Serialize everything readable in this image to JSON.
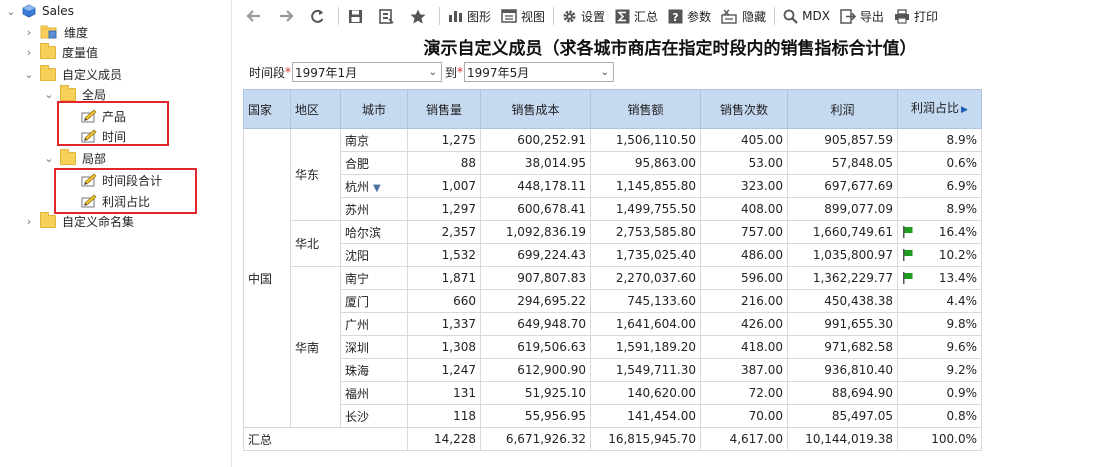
{
  "tree": {
    "root": "Sales",
    "items": [
      {
        "label": "维度"
      },
      {
        "label": "度量值"
      },
      {
        "label": "自定义成员"
      },
      {
        "label": "全局"
      },
      {
        "label": "产品"
      },
      {
        "label": "时间"
      },
      {
        "label": "局部"
      },
      {
        "label": "时间段合计"
      },
      {
        "label": "利润占比"
      },
      {
        "label": "自定义命名集"
      }
    ]
  },
  "toolbar": {
    "chart": "图形",
    "view": "视图",
    "settings": "设置",
    "summary": "汇总",
    "params": "参数",
    "hide": "隐藏",
    "mdx": "MDX",
    "export": "导出",
    "print": "打印"
  },
  "report": {
    "title": "演示自定义成员（求各城市商店在指定时段内的销售指标合计值）",
    "filter_label": "时间段",
    "required_mark": "*",
    "from_value": "1997年1月",
    "to_label": "到",
    "to_value": "1997年5月"
  },
  "table": {
    "headers": [
      "国家",
      "地区",
      "城市",
      "销售量",
      "销售成本",
      "销售额",
      "销售次数",
      "利润",
      "利润占比"
    ],
    "country": "中国",
    "regions": [
      "华东",
      "华北",
      "华南"
    ],
    "rows": [
      {
        "city": "南京",
        "qty": "1,275",
        "cost": "600,252.91",
        "sales": "1,506,110.50",
        "count": "405.00",
        "profit": "905,857.59",
        "ratio": "8.9%"
      },
      {
        "city": "合肥",
        "qty": "88",
        "cost": "38,014.95",
        "sales": "95,863.00",
        "count": "53.00",
        "profit": "57,848.05",
        "ratio": "0.6%"
      },
      {
        "city": "杭州",
        "qty": "1,007",
        "cost": "448,178.11",
        "sales": "1,145,855.80",
        "count": "323.00",
        "profit": "697,677.69",
        "ratio": "6.9%"
      },
      {
        "city": "苏州",
        "qty": "1,297",
        "cost": "600,678.41",
        "sales": "1,499,755.50",
        "count": "408.00",
        "profit": "899,077.09",
        "ratio": "8.9%"
      },
      {
        "city": "哈尔滨",
        "qty": "2,357",
        "cost": "1,092,836.19",
        "sales": "2,753,585.80",
        "count": "757.00",
        "profit": "1,660,749.61",
        "ratio": "16.4%"
      },
      {
        "city": "沈阳",
        "qty": "1,532",
        "cost": "699,224.43",
        "sales": "1,735,025.40",
        "count": "486.00",
        "profit": "1,035,800.97",
        "ratio": "10.2%"
      },
      {
        "city": "南宁",
        "qty": "1,871",
        "cost": "907,807.83",
        "sales": "2,270,037.60",
        "count": "596.00",
        "profit": "1,362,229.77",
        "ratio": "13.4%"
      },
      {
        "city": "厦门",
        "qty": "660",
        "cost": "294,695.22",
        "sales": "745,133.60",
        "count": "216.00",
        "profit": "450,438.38",
        "ratio": "4.4%"
      },
      {
        "city": "广州",
        "qty": "1,337",
        "cost": "649,948.70",
        "sales": "1,641,604.00",
        "count": "426.00",
        "profit": "991,655.30",
        "ratio": "9.8%"
      },
      {
        "city": "深圳",
        "qty": "1,308",
        "cost": "619,506.63",
        "sales": "1,591,189.20",
        "count": "418.00",
        "profit": "971,682.58",
        "ratio": "9.6%"
      },
      {
        "city": "珠海",
        "qty": "1,247",
        "cost": "612,900.90",
        "sales": "1,549,711.30",
        "count": "387.00",
        "profit": "936,810.40",
        "ratio": "9.2%"
      },
      {
        "city": "福州",
        "qty": "131",
        "cost": "51,925.10",
        "sales": "140,620.00",
        "count": "72.00",
        "profit": "88,694.90",
        "ratio": "0.9%"
      },
      {
        "city": "长沙",
        "qty": "118",
        "cost": "55,956.95",
        "sales": "141,454.00",
        "count": "70.00",
        "profit": "85,497.05",
        "ratio": "0.8%"
      }
    ],
    "total": {
      "label": "汇总",
      "qty": "14,228",
      "cost": "6,671,926.32",
      "sales": "16,815,945.70",
      "count": "4,617.00",
      "profit": "10,144,019.38",
      "ratio": "100.0%"
    },
    "flag_color": "#1e9e1e",
    "header_bg": "#c5d9f1"
  }
}
